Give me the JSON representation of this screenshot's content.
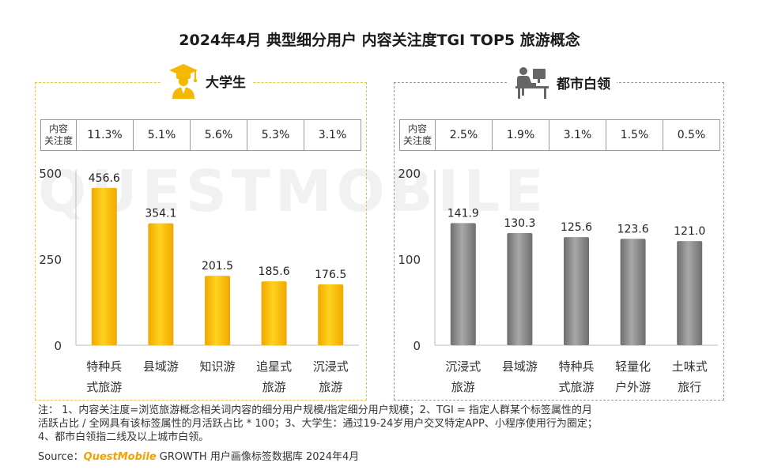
{
  "title": "2024年4月 典型细分用户 内容关注度TGI TOP5 旅游概念",
  "watermark": "QUESTMOBILE",
  "panels": [
    {
      "label": "大学生",
      "icon": "graduate-icon",
      "metric_header": "内容\n关注度",
      "metrics": [
        "11.3%",
        "5.1%",
        "5.6%",
        "5.3%",
        "3.1%"
      ]
    },
    {
      "label": "都市白领",
      "icon": "office-worker-icon",
      "metric_header": "内容\n关注度",
      "metrics": [
        "2.5%",
        "1.9%",
        "3.1%",
        "1.5%",
        "0.5%"
      ]
    }
  ],
  "chart_data": [
    {
      "type": "bar",
      "title": "大学生",
      "categories": [
        "特种兵\n式旅游",
        "县域游",
        "知识游",
        "追星式\n旅游",
        "沉浸式\n旅游"
      ],
      "values": [
        456.6,
        354.1,
        201.5,
        185.6,
        176.5
      ],
      "value_labels": [
        "456.6",
        "354.1",
        "201.5",
        "185.6",
        "176.5"
      ],
      "yticks": [
        "500",
        "250",
        "0"
      ],
      "ylim": [
        0,
        500
      ],
      "color": "#f5b800"
    },
    {
      "type": "bar",
      "title": "都市白领",
      "categories": [
        "沉浸式\n旅游",
        "县域游",
        "特种兵\n式旅游",
        "轻量化\n户外游",
        "土味式\n旅行"
      ],
      "values": [
        141.9,
        130.3,
        125.6,
        123.6,
        121.0
      ],
      "value_labels": [
        "141.9",
        "130.3",
        "125.6",
        "123.6",
        "121.0"
      ],
      "yticks": [
        "200",
        "100",
        "0"
      ],
      "ylim": [
        0,
        200
      ],
      "color": "#8a8a8a"
    }
  ],
  "notes": [
    "注： 1、内容关注度=浏览旅游概念相关词内容的细分用户规模/指定细分用户规模；2、TGI = 指定人群某个标签属性的月",
    "活跃占比 / 全网具有该标签属性的月活跃占比 * 100；3、大学生：通过19-24岁用户交叉特定APP、小程序使用行为圈定；",
    "4、都市白领指二线及以上城市白领。"
  ],
  "source": {
    "prefix": "Source：",
    "brand": "QuestMobile",
    "text": " GROWTH 用户画像标签数据库 2024年4月"
  }
}
